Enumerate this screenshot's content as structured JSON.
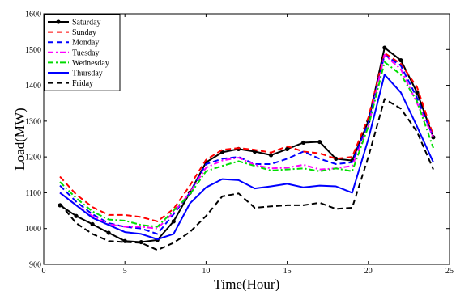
{
  "chart_data": {
    "type": "line",
    "xlabel": "Time(Hour)",
    "ylabel": "Load(MW)",
    "xlim": [
      0,
      25
    ],
    "ylim": [
      900,
      1600
    ],
    "xticks": [
      0,
      5,
      10,
      15,
      20,
      25
    ],
    "yticks": [
      900,
      1000,
      1100,
      1200,
      1300,
      1400,
      1500,
      1600
    ],
    "grid": false,
    "legend_position": "top-left",
    "x": [
      1,
      2,
      3,
      4,
      5,
      6,
      7,
      8,
      9,
      10,
      11,
      12,
      13,
      14,
      15,
      16,
      17,
      18,
      19,
      20,
      21,
      22,
      23,
      24
    ],
    "series": [
      {
        "name": "Saturday",
        "color": "#000000",
        "style": "solid-marker",
        "values": [
          1065,
          1035,
          1012,
          988,
          965,
          962,
          968,
          1020,
          1100,
          1185,
          1213,
          1222,
          1215,
          1205,
          1222,
          1240,
          1242,
          1195,
          1190,
          1300,
          1505,
          1470,
          1380,
          1255
        ]
      },
      {
        "name": "Sunday",
        "color": "#ff0000",
        "style": "dashed",
        "values": [
          1145,
          1095,
          1060,
          1038,
          1038,
          1032,
          1020,
          1055,
          1120,
          1192,
          1220,
          1225,
          1220,
          1212,
          1230,
          1215,
          1210,
          1195,
          1200,
          1310,
          1490,
          1460,
          1395,
          1260
        ]
      },
      {
        "name": "Monday",
        "color": "#0000ff",
        "style": "dashed",
        "values": [
          1120,
          1075,
          1040,
          1015,
          1005,
          1000,
          985,
          1040,
          1100,
          1180,
          1195,
          1200,
          1180,
          1180,
          1195,
          1215,
          1195,
          1180,
          1185,
          1295,
          1485,
          1455,
          1365,
          1255
        ]
      },
      {
        "name": "Tuesday",
        "color": "#ff00ff",
        "style": "dash-dot",
        "values": [
          1100,
          1065,
          1035,
          1012,
          1005,
          1005,
          1000,
          1045,
          1100,
          1170,
          1190,
          1198,
          1178,
          1168,
          1170,
          1178,
          1165,
          1168,
          1175,
          1285,
          1485,
          1445,
          1350,
          1255
        ]
      },
      {
        "name": "Wednesday",
        "color": "#00dd00",
        "style": "dash-dot",
        "values": [
          1130,
          1085,
          1048,
          1025,
          1022,
          1010,
          1005,
          1050,
          1095,
          1160,
          1175,
          1188,
          1175,
          1162,
          1165,
          1168,
          1160,
          1168,
          1160,
          1285,
          1465,
          1430,
          1355,
          1225
        ]
      },
      {
        "name": "Thursday",
        "color": "#0000ff",
        "style": "solid",
        "values": [
          1100,
          1065,
          1030,
          1010,
          990,
          985,
          970,
          985,
          1070,
          1115,
          1138,
          1135,
          1112,
          1118,
          1125,
          1115,
          1120,
          1118,
          1100,
          1250,
          1430,
          1380,
          1285,
          1185
        ]
      },
      {
        "name": "Friday",
        "color": "#000000",
        "style": "dashed",
        "values": [
          1070,
          1015,
          985,
          965,
          962,
          960,
          940,
          960,
          990,
          1035,
          1090,
          1098,
          1058,
          1062,
          1065,
          1065,
          1072,
          1055,
          1058,
          1200,
          1362,
          1335,
          1270,
          1165
        ]
      }
    ]
  }
}
